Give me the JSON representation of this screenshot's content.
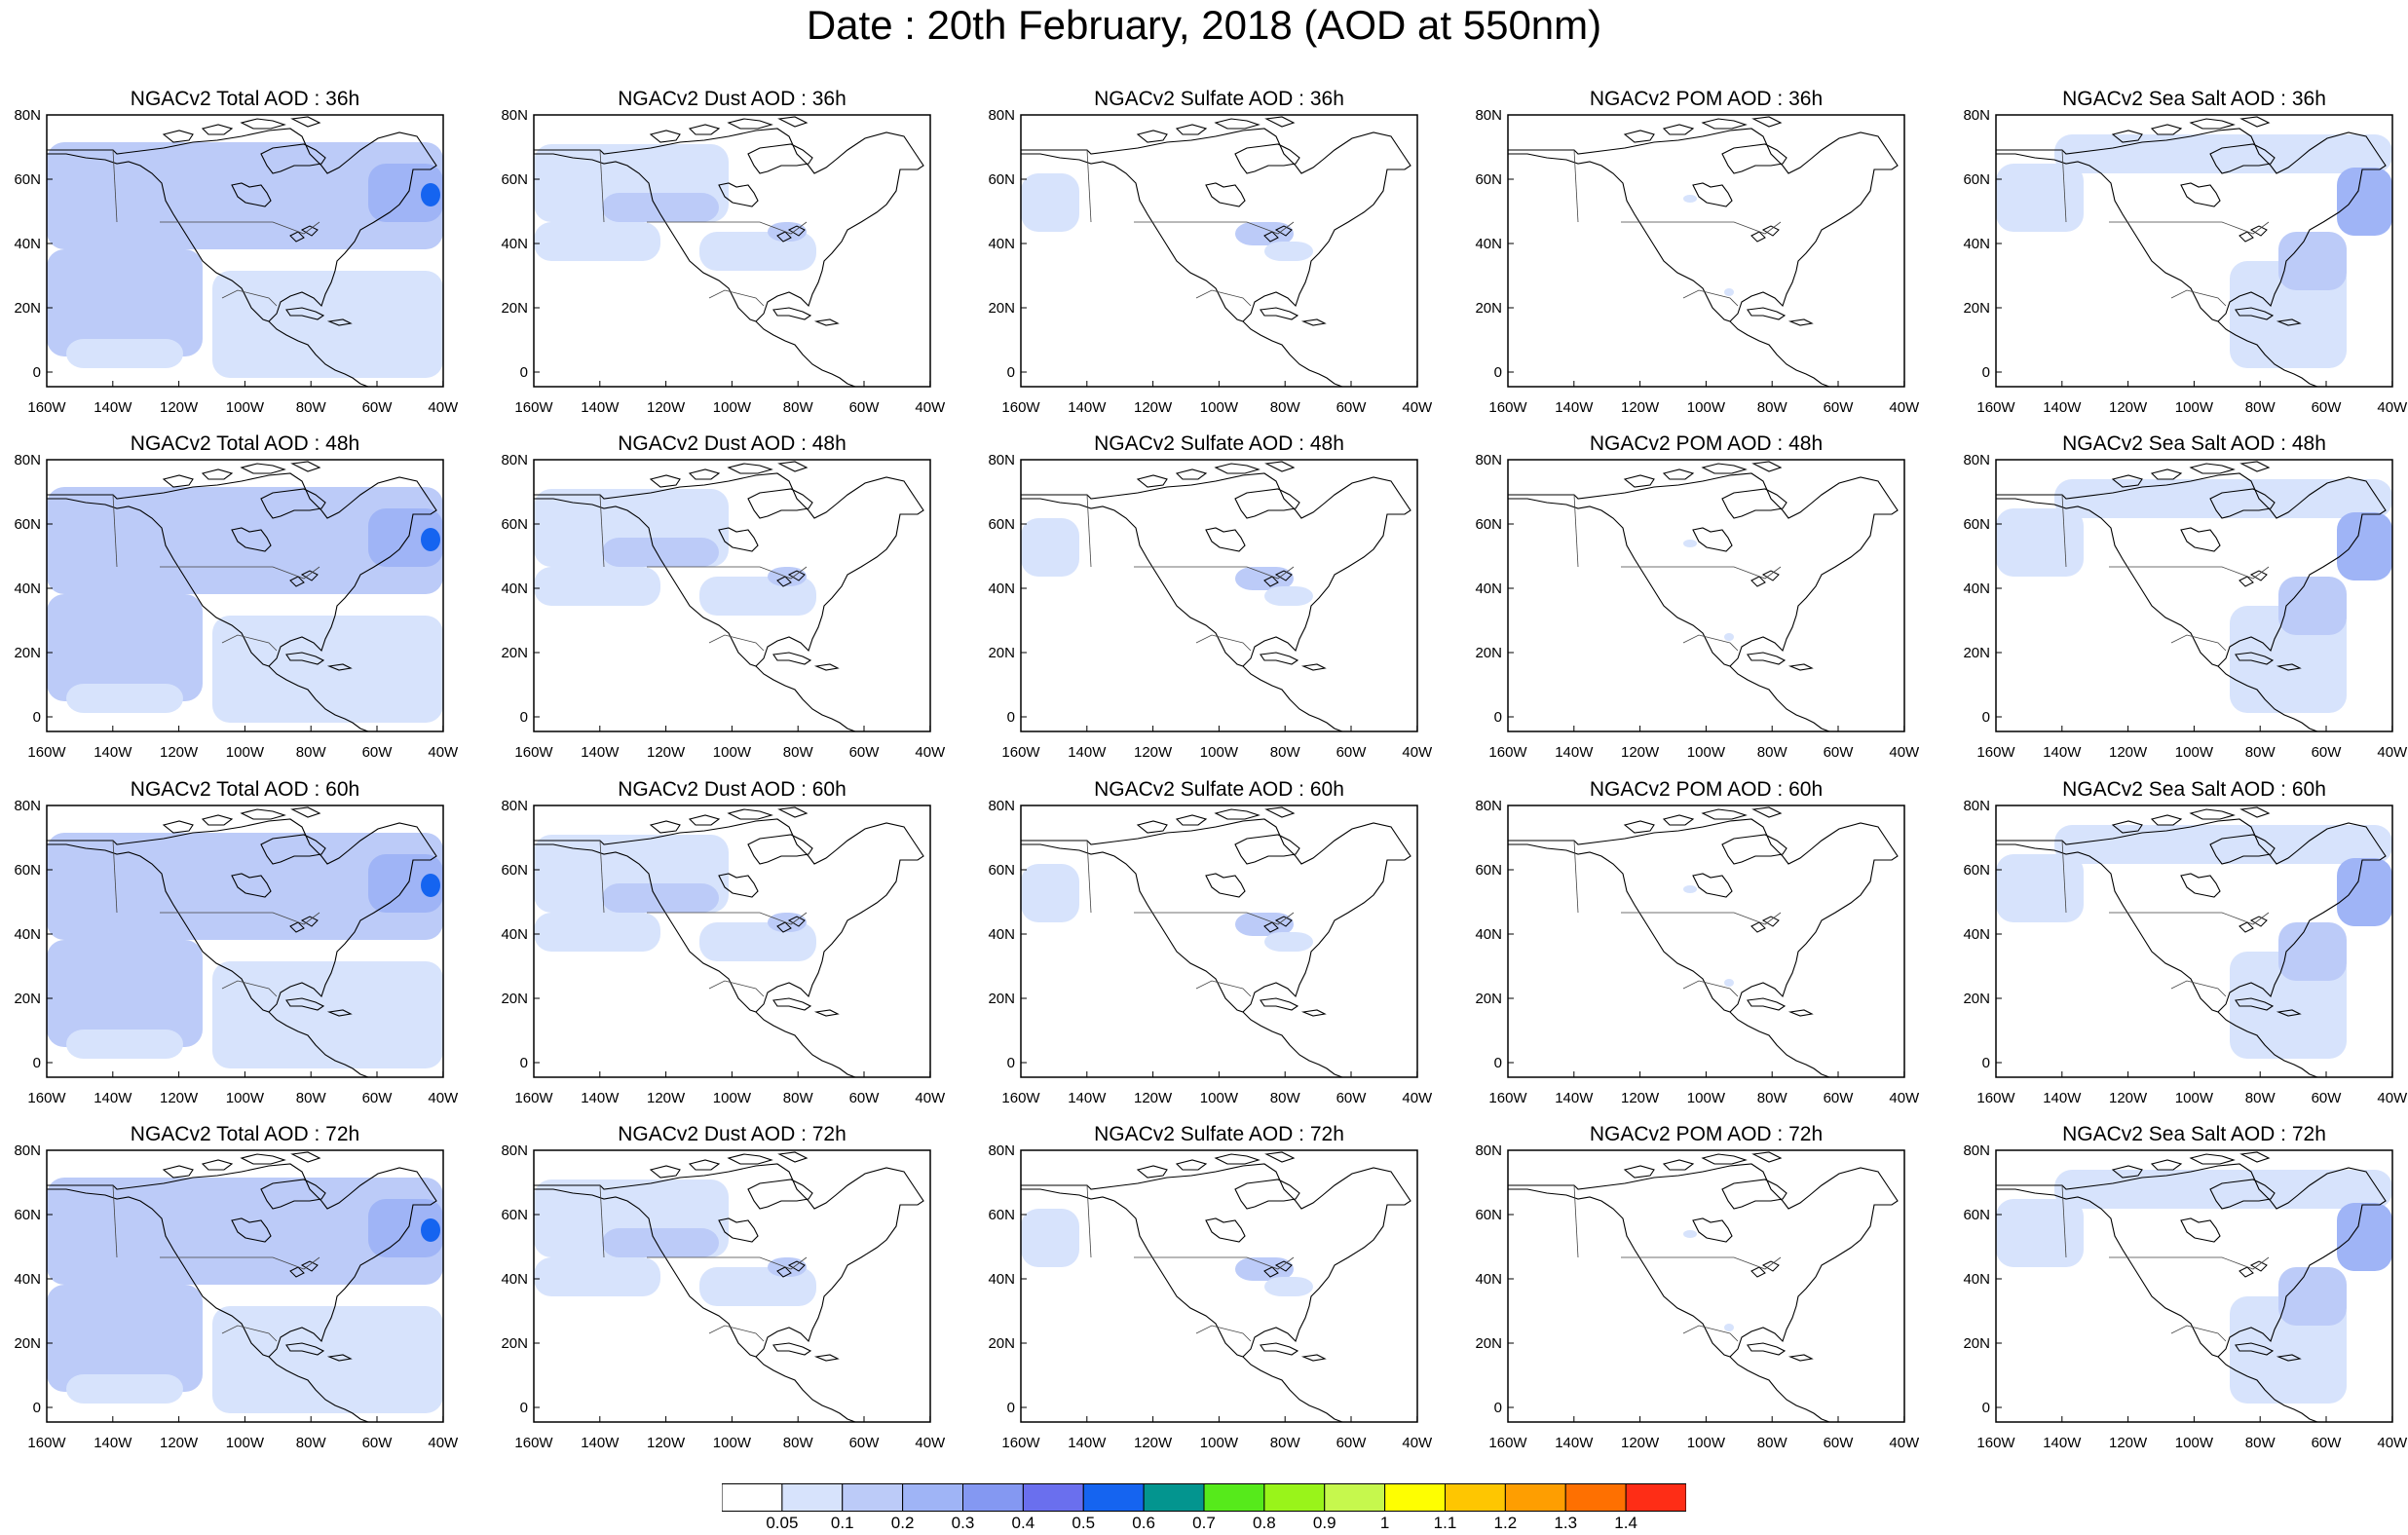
{
  "page_title": "Date : 20th February, 2018 (AOD at 550nm)",
  "axes": {
    "lat_labels": [
      "80N",
      "60N",
      "40N",
      "20N",
      "0"
    ],
    "lon_labels": [
      "160W",
      "140W",
      "120W",
      "100W",
      "80W",
      "60W",
      "40W"
    ]
  },
  "panels": [
    [
      {
        "title": "NGACv2 Total AOD : 36h",
        "field": "total"
      },
      {
        "title": "NGACv2 Dust AOD : 36h",
        "field": "dust"
      },
      {
        "title": "NGACv2 Sulfate AOD : 36h",
        "field": "sulfate"
      },
      {
        "title": "NGACv2 POM AOD : 36h",
        "field": "pom"
      },
      {
        "title": "NGACv2 Sea Salt AOD : 36h",
        "field": "seasalt"
      }
    ],
    [
      {
        "title": "NGACv2 Total AOD : 48h",
        "field": "total"
      },
      {
        "title": "NGACv2 Dust AOD : 48h",
        "field": "dust"
      },
      {
        "title": "NGACv2 Sulfate AOD : 48h",
        "field": "sulfate"
      },
      {
        "title": "NGACv2 POM AOD : 48h",
        "field": "pom"
      },
      {
        "title": "NGACv2 Sea Salt AOD : 48h",
        "field": "seasalt"
      }
    ],
    [
      {
        "title": "NGACv2 Total AOD : 60h",
        "field": "total"
      },
      {
        "title": "NGACv2 Dust AOD : 60h",
        "field": "dust"
      },
      {
        "title": "NGACv2 Sulfate AOD : 60h",
        "field": "sulfate"
      },
      {
        "title": "NGACv2 POM AOD : 60h",
        "field": "pom"
      },
      {
        "title": "NGACv2 Sea Salt AOD : 60h",
        "field": "seasalt"
      }
    ],
    [
      {
        "title": "NGACv2 Total AOD : 72h",
        "field": "total"
      },
      {
        "title": "NGACv2 Dust AOD : 72h",
        "field": "dust"
      },
      {
        "title": "NGACv2 Sulfate AOD : 72h",
        "field": "sulfate"
      },
      {
        "title": "NGACv2 POM AOD : 72h",
        "field": "pom"
      },
      {
        "title": "NGACv2 Sea Salt  AOD : 72h",
        "field": "seasalt"
      }
    ]
  ],
  "colorbar": {
    "colors": [
      "#ffffff",
      "#d7e3fc",
      "#bccbf8",
      "#9fb4f6",
      "#8498f2",
      "#6a6fee",
      "#1564f0",
      "#03958f",
      "#56ea1b",
      "#99f41a",
      "#c6f84d",
      "#fefe01",
      "#fec601",
      "#fe9e01",
      "#fe7001",
      "#fe2d16"
    ],
    "labels": [
      "0.05",
      "0.1",
      "0.2",
      "0.3",
      "0.4",
      "0.5",
      "0.6",
      "0.7",
      "0.8",
      "0.9",
      "1",
      "1.1",
      "1.2",
      "1.3",
      "1.4"
    ]
  }
}
